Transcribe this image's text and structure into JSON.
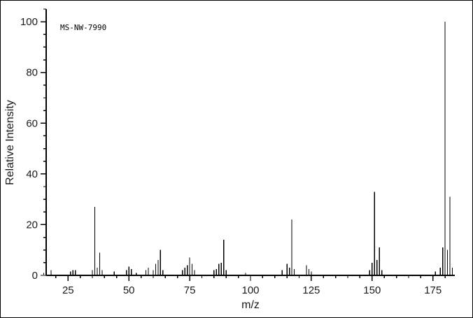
{
  "chart_data": {
    "type": "bar",
    "title": "MS-NW-7990",
    "xlabel": "m/z",
    "ylabel": "Relative Intensity",
    "xlim": [
      16,
      184
    ],
    "ylim": [
      0,
      105
    ],
    "x_major_ticks": [
      25,
      50,
      75,
      100,
      125,
      150,
      175
    ],
    "y_major_ticks": [
      0,
      20,
      40,
      60,
      80,
      100
    ],
    "x_minor_step": 5,
    "y_minor_step": 5,
    "grid": false,
    "legend": "none",
    "bar_color": "#000000",
    "background_color": "#ffffff",
    "points": [
      [
        15,
        1
      ],
      [
        18,
        2
      ],
      [
        26,
        1.5
      ],
      [
        27,
        2
      ],
      [
        28,
        2
      ],
      [
        35,
        2
      ],
      [
        36,
        27
      ],
      [
        37,
        3
      ],
      [
        38,
        9
      ],
      [
        39,
        2
      ],
      [
        44,
        1.5
      ],
      [
        49,
        2
      ],
      [
        50,
        3.5
      ],
      [
        51,
        2.5
      ],
      [
        53,
        1
      ],
      [
        57,
        2
      ],
      [
        58,
        3
      ],
      [
        60,
        2
      ],
      [
        61,
        4.5
      ],
      [
        62,
        6
      ],
      [
        63,
        10
      ],
      [
        64,
        2
      ],
      [
        72,
        2
      ],
      [
        73,
        3
      ],
      [
        74,
        4
      ],
      [
        75,
        7
      ],
      [
        76,
        4.5
      ],
      [
        77,
        2
      ],
      [
        85,
        2
      ],
      [
        86,
        2.5
      ],
      [
        87,
        4.5
      ],
      [
        88,
        5
      ],
      [
        89,
        14
      ],
      [
        90,
        2
      ],
      [
        98,
        1
      ],
      [
        113,
        2
      ],
      [
        115,
        4.5
      ],
      [
        116,
        3
      ],
      [
        117,
        22
      ],
      [
        118,
        2.5
      ],
      [
        123,
        4
      ],
      [
        124,
        2.5
      ],
      [
        125,
        1.5
      ],
      [
        149,
        2
      ],
      [
        150,
        5
      ],
      [
        151,
        33
      ],
      [
        152,
        6
      ],
      [
        153,
        11
      ],
      [
        154,
        2
      ],
      [
        176,
        1.5
      ],
      [
        178,
        3
      ],
      [
        179,
        11
      ],
      [
        180,
        100
      ],
      [
        181,
        10
      ],
      [
        182,
        31
      ],
      [
        183,
        3
      ]
    ]
  }
}
